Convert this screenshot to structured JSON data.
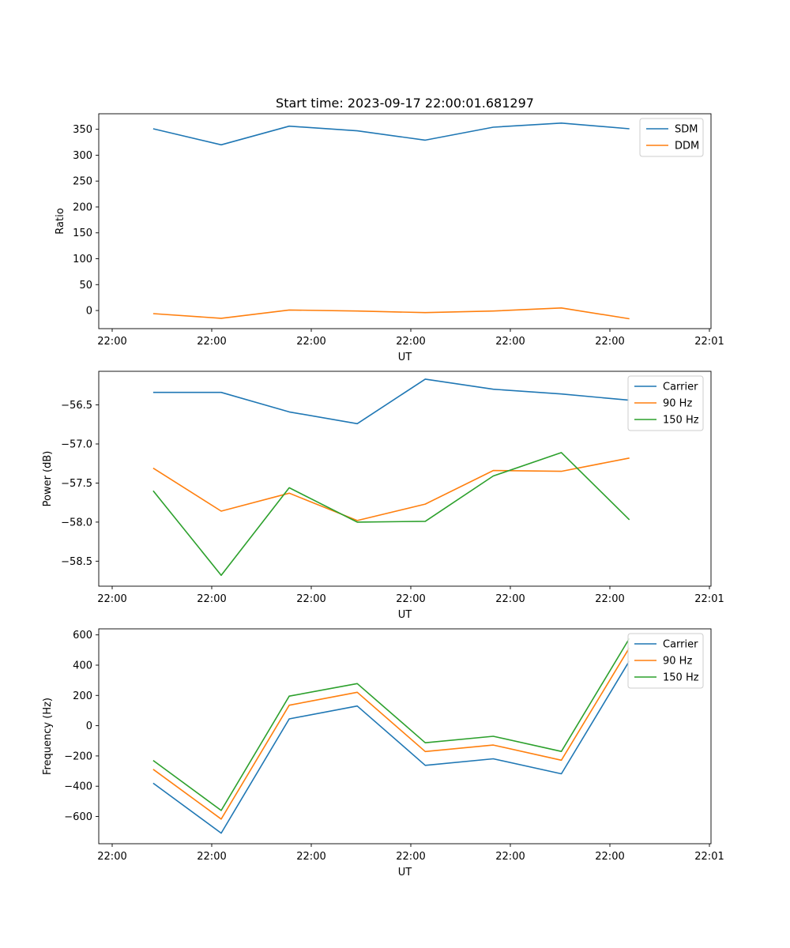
{
  "chart_data": [
    {
      "type": "line",
      "title": "Start time: 2023-09-17 22:00:01.681297",
      "xlabel": "UT",
      "ylabel": "Ratio",
      "x_ticks": [
        "22:00",
        "22:00",
        "22:00",
        "22:00",
        "22:00",
        "22:00",
        "22:01"
      ],
      "x": [
        1,
        2,
        3,
        4,
        5,
        6,
        7,
        8
      ],
      "xlim": [
        0.2,
        9.2
      ],
      "ylim": [
        -35,
        380
      ],
      "y_ticks": [
        0,
        50,
        100,
        150,
        200,
        250,
        300,
        350
      ],
      "y_tick_labels": [
        "0",
        "50",
        "100",
        "150",
        "200",
        "250",
        "300",
        "350"
      ],
      "legend": "top-right",
      "series": [
        {
          "name": "SDM",
          "color": "#1f77b4",
          "values": [
            351,
            320,
            356,
            347,
            329,
            354,
            362,
            351
          ]
        },
        {
          "name": "DDM",
          "color": "#ff7f0e",
          "values": [
            -6,
            -15,
            1,
            -1,
            -4,
            -1,
            5,
            -16
          ]
        }
      ]
    },
    {
      "type": "line",
      "title": "",
      "xlabel": "UT",
      "ylabel": "Power (dB)",
      "x_ticks": [
        "22:00",
        "22:00",
        "22:00",
        "22:00",
        "22:00",
        "22:00",
        "22:01"
      ],
      "x": [
        1,
        2,
        3,
        4,
        5,
        6,
        7,
        8
      ],
      "xlim": [
        0.2,
        9.2
      ],
      "ylim": [
        -58.82,
        -56.07
      ],
      "y_ticks": [
        -58.5,
        -58.0,
        -57.5,
        -57.0,
        -56.5
      ],
      "y_tick_labels": [
        "−58.5",
        "−58.0",
        "−57.5",
        "−57.0",
        "−56.5"
      ],
      "legend": "top-right",
      "series": [
        {
          "name": "Carrier",
          "color": "#1f77b4",
          "values": [
            -56.34,
            -56.34,
            -56.59,
            -56.74,
            -56.17,
            -56.3,
            -56.36,
            -56.44
          ]
        },
        {
          "name": "90 Hz",
          "color": "#ff7f0e",
          "values": [
            -57.31,
            -57.86,
            -57.63,
            -57.98,
            -57.77,
            -57.34,
            -57.35,
            -57.18
          ]
        },
        {
          "name": "150 Hz",
          "color": "#2ca02c",
          "values": [
            -57.6,
            -58.68,
            -57.56,
            -58.0,
            -57.99,
            -57.41,
            -57.11,
            -57.97
          ]
        }
      ]
    },
    {
      "type": "line",
      "title": "",
      "xlabel": "UT",
      "ylabel": "Frequency (Hz)",
      "x_ticks": [
        "22:00",
        "22:00",
        "22:00",
        "22:00",
        "22:00",
        "22:00",
        "22:01"
      ],
      "x": [
        1,
        2,
        3,
        4,
        5,
        6,
        7,
        8
      ],
      "xlim": [
        0.2,
        9.2
      ],
      "ylim": [
        -780,
        640
      ],
      "y_ticks": [
        -600,
        -400,
        -200,
        0,
        200,
        400,
        600
      ],
      "y_tick_labels": [
        "−600",
        "−400",
        "−200",
        "0",
        "200",
        "400",
        "600"
      ],
      "legend": "top-right",
      "series": [
        {
          "name": "Carrier",
          "color": "#1f77b4",
          "values": [
            -380,
            -710,
            45,
            130,
            -262,
            -219,
            -318,
            428
          ]
        },
        {
          "name": "90 Hz",
          "color": "#ff7f0e",
          "values": [
            -288,
            -617,
            135,
            221,
            -171,
            -128,
            -228,
            515
          ]
        },
        {
          "name": "150 Hz",
          "color": "#2ca02c",
          "values": [
            -230,
            -560,
            195,
            278,
            -113,
            -70,
            -170,
            577
          ]
        }
      ]
    }
  ]
}
